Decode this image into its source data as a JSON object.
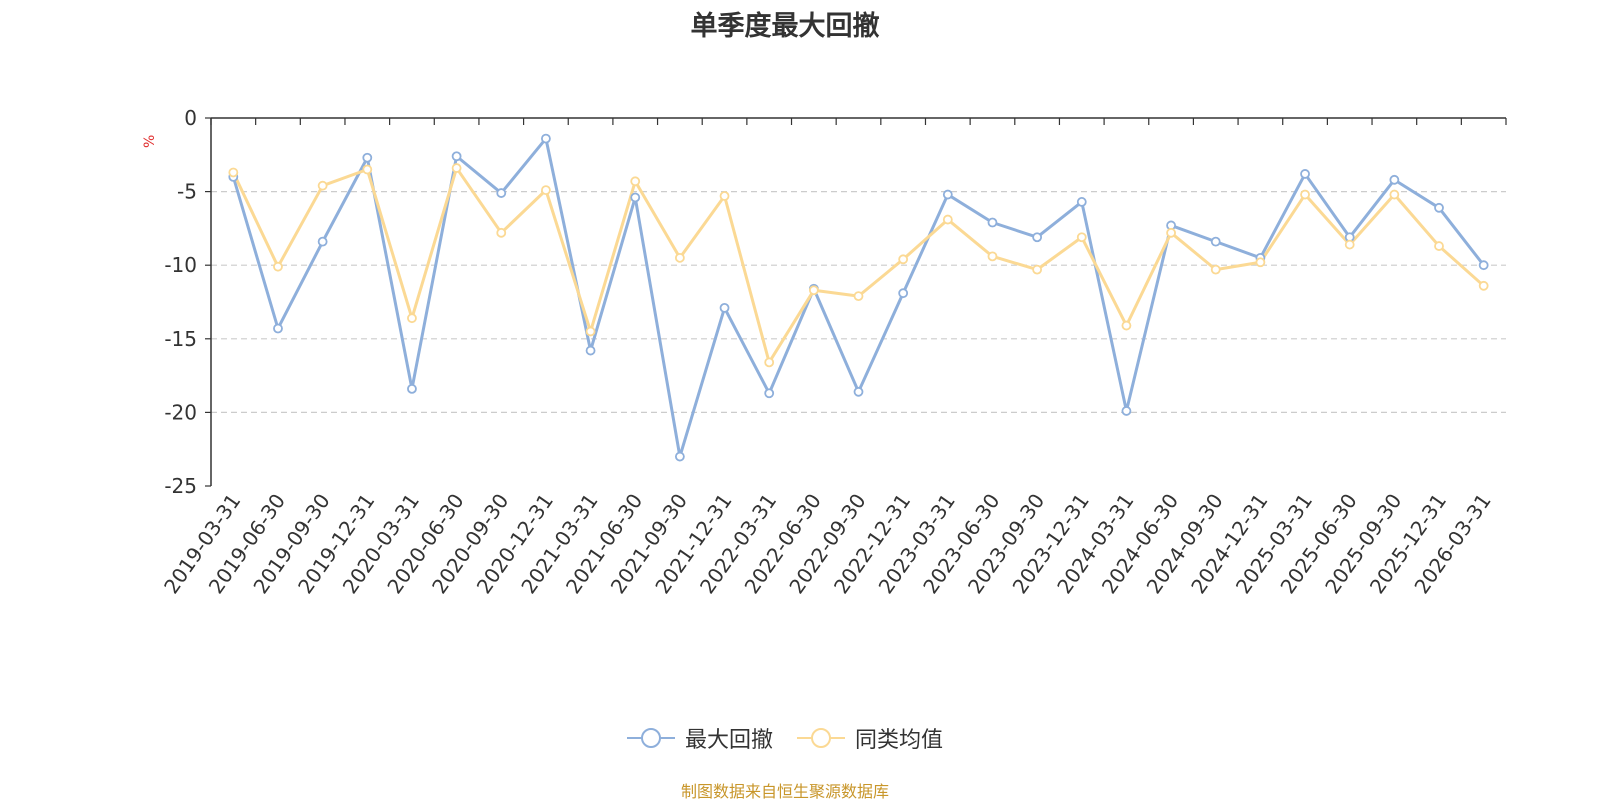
{
  "chart_data": {
    "type": "line",
    "title": "单季度最大回撤",
    "ylabel": "%",
    "ylim": [
      -25,
      0
    ],
    "yticks": [
      0,
      -5,
      -10,
      -15,
      -20,
      -25
    ],
    "grid": true,
    "legend_position": "bottom-center",
    "categories": [
      "2019-03-31",
      "2019-06-30",
      "2019-09-30",
      "2019-12-31",
      "2020-03-31",
      "2020-06-30",
      "2020-09-30",
      "2020-12-31",
      "2021-03-31",
      "2021-06-30",
      "2021-09-30",
      "2021-12-31",
      "2022-03-31",
      "2022-06-30",
      "2022-09-30",
      "2022-12-31",
      "2023-03-31",
      "2023-06-30",
      "2023-09-30",
      "2023-12-31",
      "2024-03-31",
      "2024-06-30",
      "2024-09-30",
      "2024-12-31",
      "2025-03-31",
      "2025-06-30",
      "2025-09-30",
      "2025-12-31",
      "2026-03-31"
    ],
    "series": [
      {
        "name": "最大回撤",
        "color": "#8eafdb",
        "values": [
          -4.0,
          -14.3,
          -8.4,
          -2.7,
          -18.4,
          -2.6,
          -5.1,
          -1.4,
          -15.8,
          -5.4,
          -23.0,
          -12.9,
          -18.7,
          -11.6,
          -18.6,
          -11.9,
          -5.2,
          -7.1,
          -8.1,
          -5.7,
          -19.9,
          -7.3,
          -8.4,
          -9.5,
          -3.8,
          -8.1,
          -4.2,
          -6.1,
          -10.0
        ]
      },
      {
        "name": "同类均值",
        "color": "#fbd994",
        "values": [
          -3.7,
          -10.1,
          -4.6,
          -3.5,
          -13.6,
          -3.4,
          -7.8,
          -4.9,
          -14.5,
          -4.3,
          -9.5,
          -5.3,
          -16.6,
          -11.7,
          -12.1,
          -9.6,
          -6.9,
          -9.4,
          -10.3,
          -8.1,
          -14.1,
          -7.8,
          -10.3,
          -9.8,
          -5.2,
          -8.6,
          -5.2,
          -8.7,
          -11.4
        ]
      }
    ]
  },
  "source_text": "制图数据来自恒生聚源数据库"
}
